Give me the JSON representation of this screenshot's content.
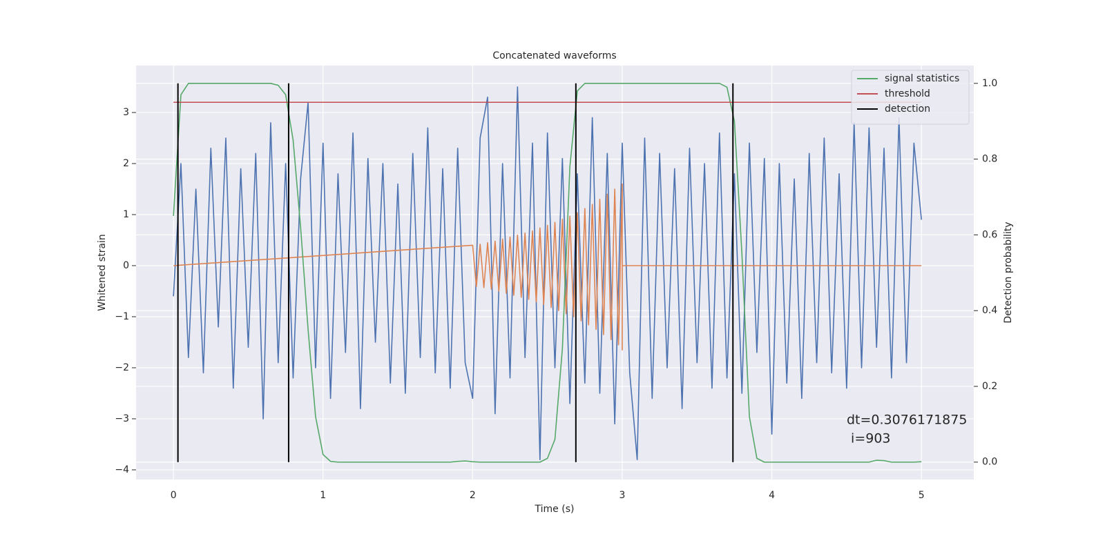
{
  "chart_data": {
    "type": "line",
    "title": "Concatenated waveforms",
    "x_label": "Time (s)",
    "y_label": "Whitened strain",
    "y2_label": "Detection probability",
    "xlim": [
      -0.25,
      5.35
    ],
    "ylim": [
      -4.19,
      3.92
    ],
    "y2lim": [
      -0.046,
      1.047
    ],
    "xticks": [
      0,
      1,
      2,
      3,
      4,
      5
    ],
    "yticks": [
      {
        "value": -4,
        "label": "−4"
      },
      {
        "value": -3,
        "label": "−3"
      },
      {
        "value": -2,
        "label": "−2"
      },
      {
        "value": -1,
        "label": "−1"
      },
      0,
      1,
      2,
      3
    ],
    "y2ticks": [
      {
        "value": 0,
        "label": "0.0"
      },
      0.2,
      0.4,
      0.6,
      0.8,
      {
        "value": 1,
        "label": "1.0"
      }
    ],
    "grid": true,
    "legend": "upper right",
    "x": [
      0,
      0.05,
      0.1,
      0.15,
      0.2,
      0.25,
      0.3,
      0.35,
      0.4,
      0.45,
      0.5,
      0.55,
      0.6,
      0.65,
      0.7,
      0.75,
      0.8,
      0.85,
      0.9,
      0.95,
      1,
      1.05,
      1.1,
      1.15,
      1.2,
      1.25,
      1.3,
      1.35,
      1.4,
      1.45,
      1.5,
      1.55,
      1.6,
      1.65,
      1.7,
      1.75,
      1.8,
      1.85,
      1.9,
      1.95,
      2,
      2.05,
      2.1,
      2.15,
      2.2,
      2.25,
      2.3,
      2.35,
      2.4,
      2.45,
      2.5,
      2.55,
      2.6,
      2.65,
      2.7,
      2.75,
      2.8,
      2.85,
      2.9,
      2.95,
      3,
      3.05,
      3.1,
      3.15,
      3.2,
      3.25,
      3.3,
      3.35,
      3.4,
      3.45,
      3.5,
      3.55,
      3.6,
      3.65,
      3.7,
      3.75,
      3.8,
      3.85,
      3.9,
      3.95,
      4,
      4.05,
      4.1,
      4.15,
      4.2,
      4.25,
      4.3,
      4.35,
      4.4,
      4.45,
      4.5,
      4.55,
      4.6,
      4.65,
      4.7,
      4.75,
      4.8,
      4.85,
      4.9,
      4.95,
      5
    ],
    "series": [
      {
        "color": "#4c72b0",
        "values": [
          -0.6,
          2.0,
          -1.8,
          1.5,
          -2.1,
          2.3,
          -1.2,
          2.5,
          -2.4,
          1.9,
          -1.6,
          2.2,
          -3.0,
          2.8,
          -1.9,
          2.0,
          -2.2,
          1.7,
          3.2,
          -2.0,
          2.4,
          -2.6,
          1.8,
          -1.7,
          2.6,
          -2.8,
          2.1,
          -1.5,
          2.0,
          -2.3,
          1.6,
          -2.5,
          2.2,
          -1.8,
          2.7,
          -2.1,
          1.9,
          -2.4,
          2.3,
          -1.9,
          -2.6,
          2.5,
          3.3,
          -2.9,
          2.0,
          -2.2,
          3.5,
          -1.8,
          2.4,
          -3.8,
          2.6,
          -2.0,
          2.1,
          -2.7,
          1.8,
          -2.3,
          2.9,
          -2.5,
          2.2,
          -3.1,
          2.4,
          -2.1,
          -3.8,
          2.5,
          -2.6,
          2.2,
          -2.0,
          1.9,
          -2.8,
          2.3,
          -1.9,
          2.0,
          -2.4,
          2.6,
          -2.2,
          1.8,
          -2.5,
          2.4,
          -1.7,
          2.1,
          -3.3,
          2.0,
          -2.3,
          1.7,
          -2.6,
          2.2,
          -1.9,
          2.5,
          -2.1,
          1.8,
          -2.4,
          2.8,
          -2.0,
          2.7,
          -1.6,
          2.3,
          -2.2,
          2.9,
          -1.9,
          2.4,
          0.9
        ]
      },
      {
        "color": "#dd8452",
        "x": [
          0,
          2.0,
          2.025,
          2.05,
          2.075,
          2.1,
          2.125,
          2.15,
          2.175,
          2.2,
          2.225,
          2.25,
          2.275,
          2.3,
          2.325,
          2.35,
          2.375,
          2.4,
          2.425,
          2.45,
          2.475,
          2.5,
          2.525,
          2.55,
          2.575,
          2.6,
          2.625,
          2.65,
          2.675,
          2.7,
          2.725,
          2.75,
          2.775,
          2.8,
          2.825,
          2.85,
          2.875,
          2.9,
          2.925,
          2.95,
          2.975,
          3.0,
          3.0,
          3.0,
          5.0
        ],
        "values": [
          0,
          0.4,
          -0.41,
          0.42,
          -0.43,
          0.45,
          -0.46,
          0.48,
          -0.5,
          0.52,
          -0.54,
          0.56,
          -0.58,
          0.6,
          -0.62,
          0.64,
          -0.66,
          0.68,
          -0.71,
          0.74,
          -0.76,
          0.79,
          -0.82,
          0.85,
          -0.88,
          0.91,
          -0.94,
          0.97,
          -1.0,
          1.04,
          -1.08,
          1.12,
          -1.16,
          1.2,
          -1.25,
          1.3,
          -1.35,
          1.4,
          -1.45,
          1.5,
          -1.55,
          1.6,
          -1.65,
          0,
          0
        ]
      },
      {
        "name": "signal statistics",
        "color": "#55a868",
        "axis": "y2",
        "values": [
          0.65,
          0.97,
          1,
          1,
          1,
          1,
          1,
          1,
          1,
          1,
          1,
          1,
          1,
          1,
          0.995,
          0.97,
          0.85,
          0.62,
          0.35,
          0.12,
          0.02,
          0.002,
          0,
          0,
          0,
          0,
          0,
          0,
          0,
          0,
          0,
          0,
          0,
          0,
          0,
          0,
          0,
          0,
          0.002,
          0.003,
          0.001,
          0,
          0,
          0,
          0,
          0,
          0,
          0,
          0,
          0,
          0.01,
          0.06,
          0.3,
          0.78,
          0.98,
          1,
          1,
          1,
          1,
          1,
          1,
          1,
          1,
          1,
          1,
          1,
          1,
          1,
          1,
          1,
          1,
          1,
          1,
          1,
          0.99,
          0.9,
          0.55,
          0.12,
          0.01,
          0,
          0,
          0,
          0,
          0,
          0,
          0,
          0,
          0,
          0,
          0,
          0,
          0,
          0,
          0,
          0.005,
          0.004,
          0,
          0,
          0,
          0,
          0.001
        ]
      }
    ],
    "threshold": {
      "name": "threshold",
      "color": "#c44e52",
      "value": 0.95,
      "x": [
        0,
        5
      ]
    },
    "detection": {
      "name": "detection",
      "color": "#000000",
      "x": [
        0.03,
        0.77,
        2.69,
        3.74
      ],
      "y2": [
        0,
        1
      ]
    },
    "annotation": [
      "dt=0.3076171875",
      " i=903"
    ]
  }
}
